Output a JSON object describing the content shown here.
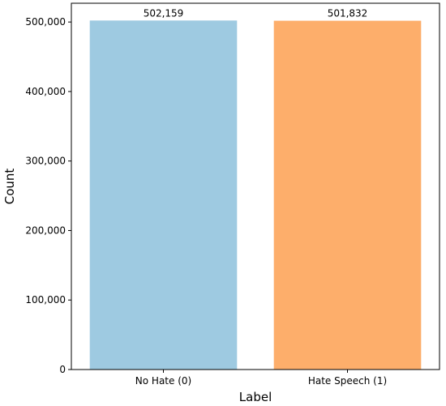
{
  "chart_data": {
    "type": "bar",
    "title": "",
    "xlabel": "Label",
    "ylabel": "Count",
    "categories": [
      "No Hate (0)",
      "Hate Speech (1)"
    ],
    "values": [
      502159,
      501832
    ],
    "value_labels": [
      "502,159",
      "501,832"
    ],
    "colors": [
      "#9ecae1",
      "#fdae6b"
    ],
    "ylim": [
      0,
      527000
    ],
    "yticks": [
      0,
      100000,
      200000,
      300000,
      400000,
      500000
    ],
    "ytick_labels": [
      "0",
      "100,000",
      "200,000",
      "300,000",
      "400,000",
      "500,000"
    ],
    "grid": false,
    "legend": "none"
  }
}
